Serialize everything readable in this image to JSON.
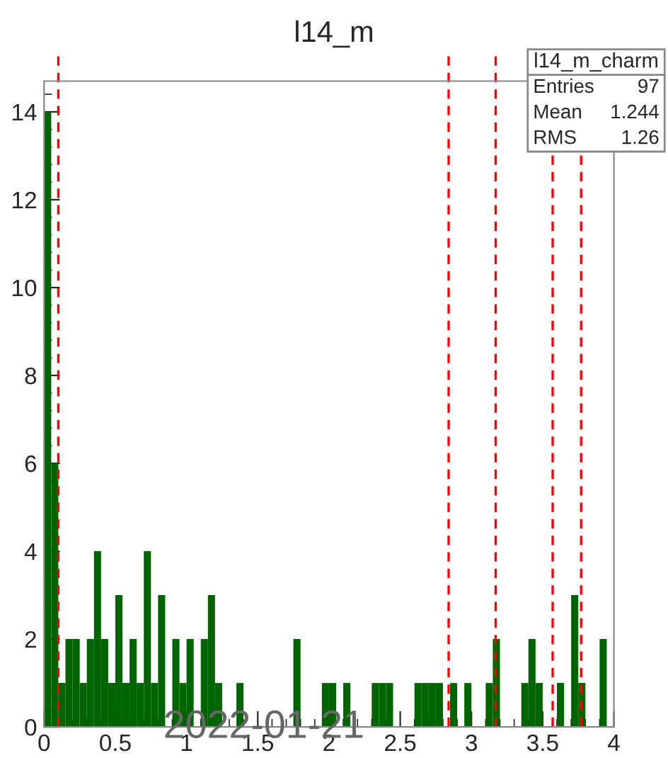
{
  "chart_data": {
    "type": "histogram",
    "title": "l14_m",
    "bins": [
      0,
      0.05,
      0.1,
      0.15,
      0.2,
      0.25,
      0.3,
      0.35,
      0.4,
      0.45,
      0.5,
      0.55,
      0.6,
      0.65,
      0.7,
      0.75,
      0.8,
      0.85,
      0.9,
      0.95,
      1,
      1.05,
      1.1,
      1.15,
      1.2,
      1.25,
      1.3,
      1.35,
      1.4,
      1.45,
      1.5,
      1.55,
      1.6,
      1.65,
      1.7,
      1.75,
      1.8,
      1.85,
      1.9,
      1.95,
      2,
      2.05,
      2.1,
      2.15,
      2.2,
      2.25,
      2.3,
      2.35,
      2.4,
      2.45,
      2.5,
      2.55,
      2.6,
      2.65,
      2.7,
      2.75,
      2.8,
      2.85,
      2.9,
      2.95,
      3,
      3.05,
      3.1,
      3.15,
      3.2,
      3.25,
      3.3,
      3.35,
      3.4,
      3.45,
      3.5,
      3.55,
      3.6,
      3.65,
      3.7,
      3.75,
      3.8,
      3.85,
      3.9,
      3.95,
      4
    ],
    "values": [
      14,
      6,
      1,
      2,
      2,
      1,
      2,
      4,
      2,
      1,
      3,
      1,
      2,
      1,
      4,
      1,
      3,
      0,
      2,
      1,
      2,
      0,
      2,
      3,
      1,
      0,
      0,
      1,
      0,
      0,
      0,
      0,
      0,
      0,
      0,
      2,
      0,
      0,
      0,
      1,
      1,
      0,
      1,
      0,
      0,
      0,
      1,
      1,
      1,
      0,
      0,
      0,
      1,
      1,
      1,
      1,
      0,
      1,
      0,
      1,
      0,
      0,
      1,
      2,
      0,
      0,
      0,
      1,
      2,
      1,
      0,
      0,
      1,
      0,
      3,
      1,
      0,
      0,
      2,
      0
    ],
    "color": "#006400",
    "xlim": [
      0,
      4
    ],
    "ylim": [
      0,
      14.7
    ],
    "xticks": [
      0,
      {
        "value": 0.5,
        "label": "0.5"
      },
      1,
      {
        "value": 1.5,
        "label": "1.5"
      },
      2,
      {
        "value": 2.5,
        "label": "2.5"
      },
      3,
      {
        "value": 3.5,
        "label": "3.5"
      },
      4
    ],
    "yticks": [
      0,
      2,
      4,
      6,
      8,
      10,
      12,
      14
    ],
    "grid": false,
    "ref_lines": [
      {
        "axis": "x",
        "value": 0.1,
        "color": "#ff0000",
        "line_style": "dashed"
      },
      {
        "axis": "x",
        "value": 2.84,
        "color": "#ff0000",
        "line_style": "dashed"
      },
      {
        "axis": "x",
        "value": 3.17,
        "color": "#ff0000",
        "line_style": "dashed"
      },
      {
        "axis": "x",
        "value": 3.57,
        "color": "#ff0000",
        "line_style": "dashed"
      },
      {
        "axis": "x",
        "value": 3.77,
        "color": "#ff0000",
        "line_style": "dashed"
      }
    ],
    "annotations": [
      "l14_m_charm",
      "Entries",
      "97",
      "Mean",
      "1.244",
      "RMS",
      "1.26",
      "2022-01-21"
    ]
  }
}
